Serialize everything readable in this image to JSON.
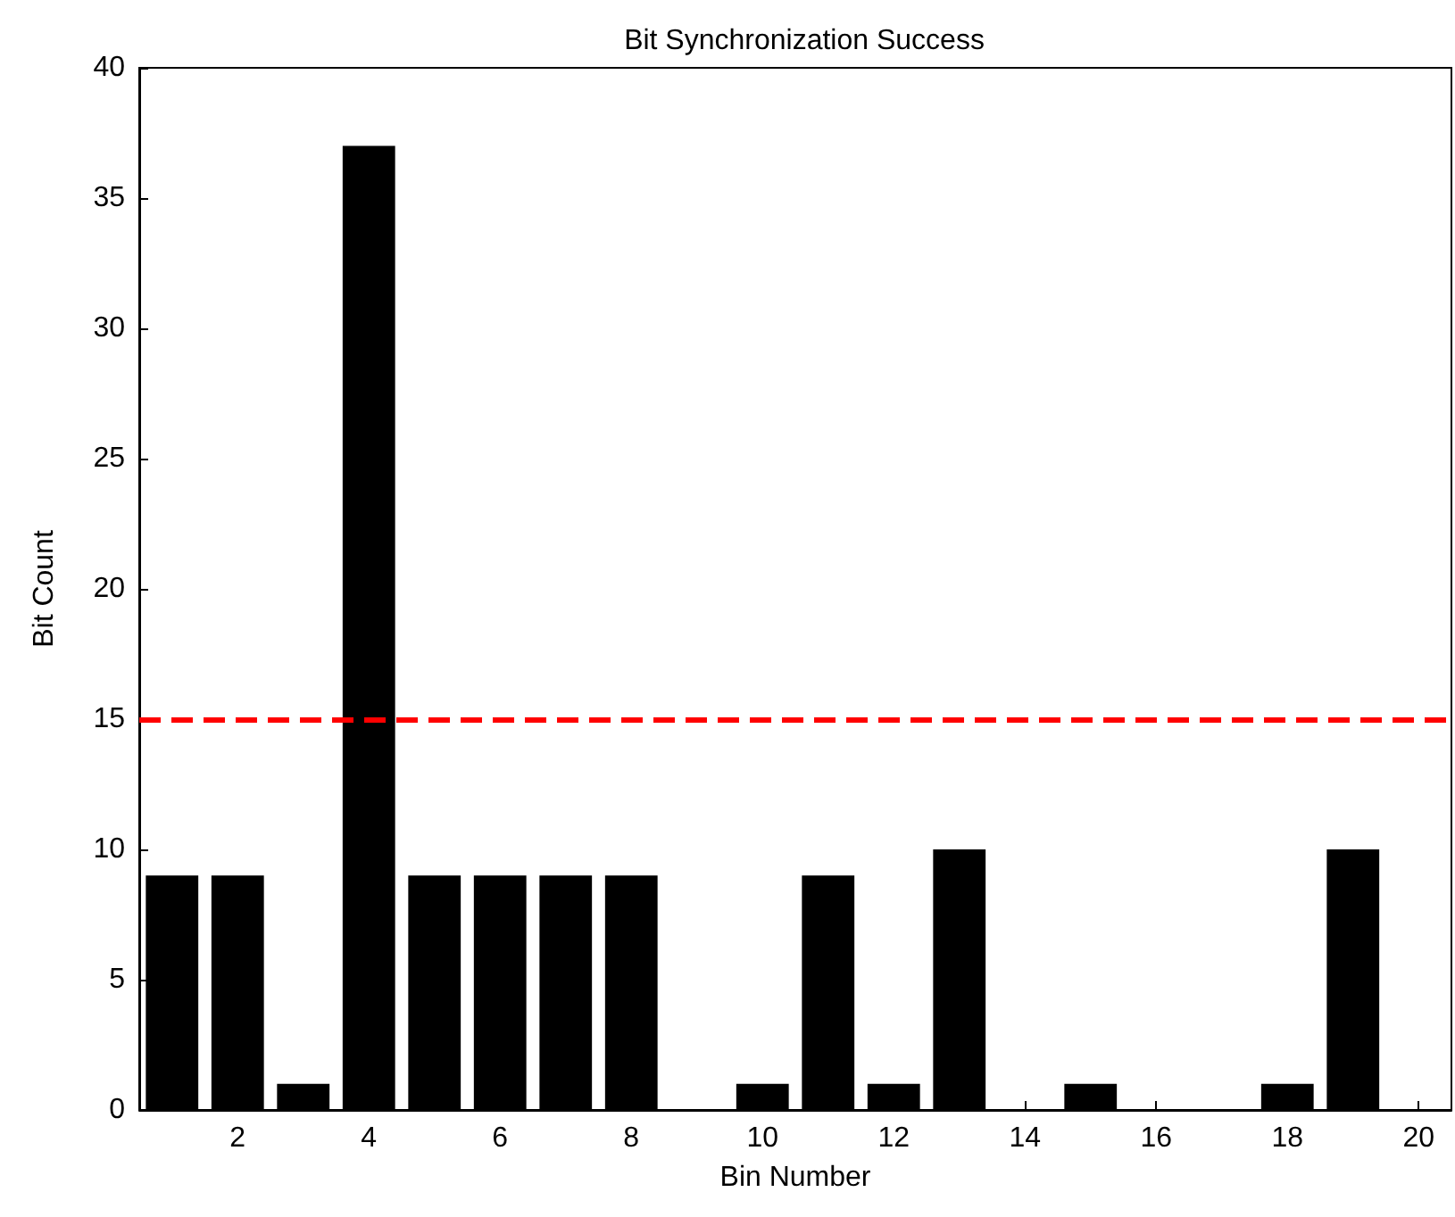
{
  "chart_data": {
    "type": "bar",
    "title": "Bit Synchronization Success",
    "xlabel": "Bin Number",
    "ylabel": "Bit Count",
    "x": [
      1,
      2,
      3,
      4,
      5,
      6,
      7,
      8,
      9,
      10,
      11,
      12,
      13,
      14,
      15,
      16,
      17,
      18,
      19,
      20
    ],
    "values": [
      9,
      9,
      1,
      37,
      9,
      9,
      9,
      9,
      0,
      1,
      9,
      1,
      10,
      0,
      1,
      0,
      0,
      1,
      10,
      0
    ],
    "color": "#000000",
    "xlim": [
      0.5,
      20.5
    ],
    "xticks": [
      2,
      4,
      6,
      8,
      10,
      12,
      14,
      16,
      18,
      20
    ],
    "ylim": [
      0,
      40
    ],
    "yticks": [
      0,
      5,
      10,
      15,
      20,
      25,
      30,
      35,
      40
    ],
    "ref_lines": [
      {
        "axis": "y",
        "value": 15,
        "color": "#ff0000",
        "line_style": "dashed"
      }
    ],
    "grid": false
  }
}
